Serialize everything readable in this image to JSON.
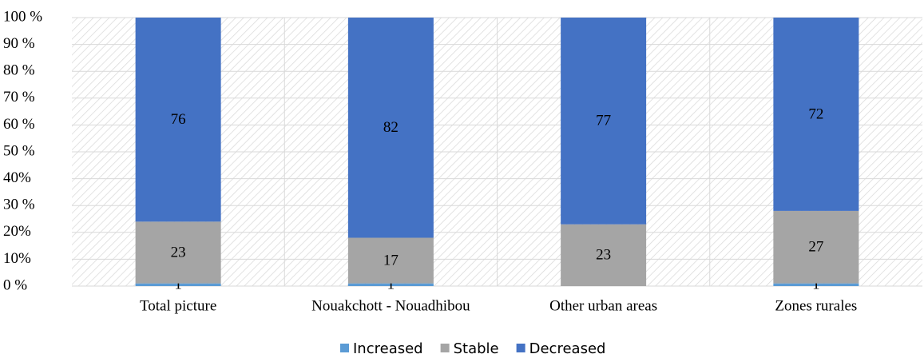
{
  "chart_data": {
    "type": "stacked_bar_100",
    "categories": [
      "Total picture",
      "Nouakchott - Nouadhibou",
      "Other urban areas",
      "Zones rurales"
    ],
    "series": [
      {
        "name": "Increased",
        "color": "#5b9bd5",
        "values": [
          1,
          1,
          null,
          1
        ]
      },
      {
        "name": "Stable",
        "color": "#a5a5a5",
        "values": [
          23,
          17,
          23,
          27
        ]
      },
      {
        "name": "Decreased",
        "color": "#4472c4",
        "values": [
          76,
          82,
          77,
          72
        ]
      }
    ],
    "ylim": [
      0,
      100
    ],
    "yticks": [
      {
        "value": 0,
        "label": "0 %"
      },
      {
        "value": 10,
        "label": "10%"
      },
      {
        "value": 20,
        "label": "20%"
      },
      {
        "value": 30,
        "label": "30 %"
      },
      {
        "value": 40,
        "label": "40%"
      },
      {
        "value": 50,
        "label": "50 %"
      },
      {
        "value": 60,
        "label": "60 %"
      },
      {
        "value": 70,
        "label": "70 %"
      },
      {
        "value": 80,
        "label": "80 %"
      },
      {
        "value": 90,
        "label": "90 %"
      },
      {
        "value": 100,
        "label": "100 %"
      }
    ],
    "grid": true,
    "legend": "bottom"
  }
}
